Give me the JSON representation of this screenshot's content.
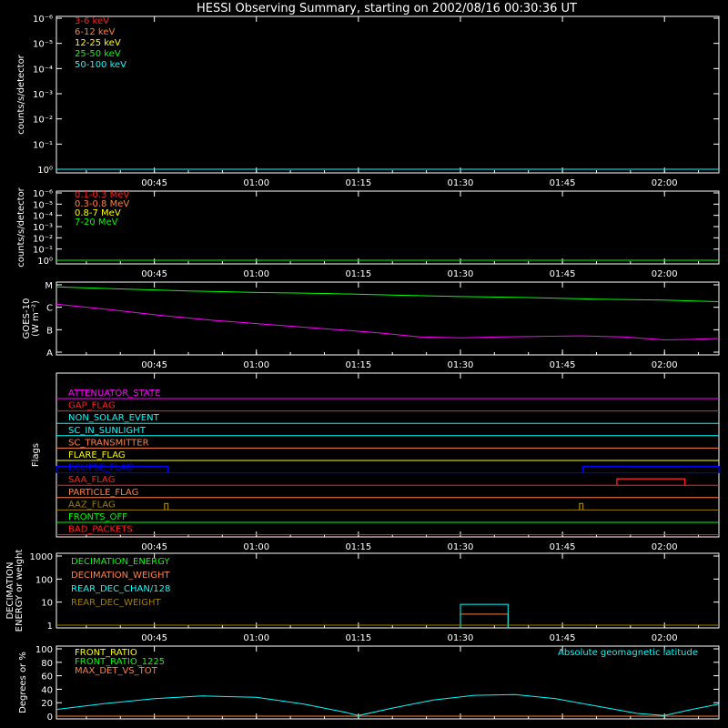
{
  "title": "HESSI Observing Summary, starting on 2002/08/16 00:30:36 UT",
  "colors": {
    "background": "#000000",
    "axis": "#ffffff",
    "red": "#ff2020",
    "orange": "#ff8040",
    "yellow": "#ffff00",
    "green": "#00ff00",
    "cyan": "#00ffff",
    "magenta": "#ff00ff",
    "blue": "#0000ff",
    "olive": "#a08000"
  },
  "x_axis": {
    "start_time": "00:30:36",
    "end_time": "02:08:00",
    "tick_labels": [
      "00:45",
      "01:00",
      "01:15",
      "01:30",
      "01:45",
      "02:00"
    ]
  },
  "chart_data": [
    {
      "type": "line",
      "panel": "lo_energy",
      "ylabel": "counts/s/detector",
      "y_tick_labels": [
        "10⁰",
        "10⁻¹",
        "10⁻²",
        "10⁻³",
        "10⁻⁴",
        "10⁻⁵",
        "10⁻⁶"
      ],
      "y_scale": "log",
      "ylim": [
        1,
        1e-06
      ],
      "series": [
        {
          "name": "3-6 keV",
          "color": "#ff2020",
          "x": [
            "00:30:36",
            "02:08:00"
          ],
          "y": [
            1,
            1
          ]
        },
        {
          "name": "6-12 keV",
          "color": "#ff8040",
          "x": [
            "00:30:36",
            "02:08:00"
          ],
          "y": [
            1,
            1
          ]
        },
        {
          "name": "12-25 keV",
          "color": "#ffff00",
          "x": [
            "00:30:36",
            "02:08:00"
          ],
          "y": [
            1,
            1
          ]
        },
        {
          "name": "25-50 keV",
          "color": "#00ff00",
          "x": [
            "00:30:36",
            "02:08:00"
          ],
          "y": [
            1,
            1
          ]
        },
        {
          "name": "50-100 keV",
          "color": "#00ffff",
          "x": [
            "00:30:36",
            "02:08:00"
          ],
          "y": [
            1,
            1
          ]
        }
      ]
    },
    {
      "type": "line",
      "panel": "hi_energy",
      "ylabel": "counts/s/detector",
      "y_tick_labels": [
        "10⁰",
        "10⁻¹",
        "10⁻²",
        "10⁻³",
        "10⁻⁴",
        "10⁻⁵",
        "10⁻⁶"
      ],
      "y_scale": "log",
      "ylim": [
        1,
        1e-06
      ],
      "series": [
        {
          "name": "0.1-0.3 MeV",
          "color": "#ff2020",
          "x": [
            "00:30:36",
            "02:08:00"
          ],
          "y": [
            1,
            1
          ]
        },
        {
          "name": "0.3-0.8 MeV",
          "color": "#ff8040",
          "x": [
            "00:30:36",
            "02:08:00"
          ],
          "y": [
            1,
            1
          ]
        },
        {
          "name": "0.8-7 MeV",
          "color": "#ffff00",
          "x": [
            "00:30:36",
            "02:08:00"
          ],
          "y": [
            1,
            1
          ]
        },
        {
          "name": "7-20 MeV",
          "color": "#00ff00",
          "x": [
            "00:30:36",
            "02:08:00"
          ],
          "y": [
            1,
            1
          ]
        }
      ]
    },
    {
      "type": "line",
      "panel": "goes",
      "ylabel": "GOES-10",
      "ylabel2": "(W m⁻²)",
      "y_tick_labels": [
        "A",
        "B",
        "C",
        "M"
      ],
      "y_scale": "log",
      "series": [
        {
          "name": "GOES high",
          "color": "#00ff00",
          "x": [
            "00:30:36",
            "00:40:00",
            "00:50:00",
            "01:00:00",
            "01:10:00",
            "01:20:00",
            "01:30:00",
            "01:40:00",
            "01:50:00",
            "02:00:00",
            "02:08:00"
          ],
          "level": [
            7.4,
            7.2,
            7.0,
            6.85,
            6.75,
            6.6,
            6.45,
            6.35,
            6.2,
            6.1,
            5.95
          ]
        },
        {
          "name": "GOES low",
          "color": "#ff00ff",
          "x": [
            "00:30:36",
            "00:38:00",
            "00:46:00",
            "00:54:00",
            "01:02:00",
            "01:10:00",
            "01:18:00",
            "01:24:00",
            "01:30:00",
            "01:36:00",
            "01:42:00",
            "01:48:00",
            "01:54:00",
            "02:00:00",
            "02:04:00",
            "02:08:00"
          ],
          "level": [
            5.7,
            5.2,
            4.6,
            4.1,
            3.7,
            3.3,
            2.9,
            2.5,
            2.4,
            2.5,
            2.55,
            2.6,
            2.5,
            2.2,
            2.25,
            2.35
          ]
        }
      ]
    },
    {
      "type": "table",
      "panel": "flags",
      "ylabel": "Flags",
      "flags": [
        {
          "name": "ATTENUATOR_STATE",
          "color": "#ff00ff",
          "segments": []
        },
        {
          "name": "GAP_FLAG",
          "color": "#ff2020",
          "segments": []
        },
        {
          "name": "NON_SOLAR_EVENT",
          "color": "#00ffff",
          "segments": []
        },
        {
          "name": "SC_IN_SUNLIGHT",
          "color": "#00ffff",
          "segments": []
        },
        {
          "name": "SC_TRANSMITTER",
          "color": "#ff8040",
          "segments": []
        },
        {
          "name": "FLARE_FLAG",
          "color": "#ffff00",
          "segments": []
        },
        {
          "name": "ECLIPSE_FLAG",
          "color": "#0000ff",
          "segments": [
            [
              "00:30:36",
              "00:47:00"
            ],
            [
              "01:48:00",
              "02:08:00"
            ]
          ]
        },
        {
          "name": "SAA_FLAG",
          "color": "#ff2020",
          "segments": [
            [
              "01:53:00",
              "02:03:00"
            ]
          ]
        },
        {
          "name": "PARTICLE_FLAG",
          "color": "#ff8040",
          "segments": []
        },
        {
          "name": "AAZ_FLAG",
          "color": "#a08000",
          "segments": [
            [
              "00:46:30",
              "00:47:00"
            ],
            [
              "01:47:30",
              "01:48:00"
            ]
          ]
        },
        {
          "name": "FRONTS_OFF",
          "color": "#00ff00",
          "segments": []
        },
        {
          "name": "BAD_PACKETS",
          "color": "#ff2020",
          "segments": []
        }
      ]
    },
    {
      "type": "line",
      "panel": "decimation",
      "ylabel": "DECIMATION",
      "ylabel2": "ENERGY or weight",
      "y_tick_labels": [
        "1",
        "10",
        "100",
        "1000"
      ],
      "y_scale": "log",
      "ylim": [
        1,
        1000
      ],
      "series": [
        {
          "name": "DECIMATION_ENERGY",
          "color": "#00ff00",
          "x": [
            "00:30:36",
            "02:08:00"
          ],
          "y": [
            1,
            1
          ]
        },
        {
          "name": "DECIMATION_WEIGHT",
          "color": "#ff8040",
          "x": [
            "01:30:00",
            "01:37:00"
          ],
          "y": [
            3,
            3
          ]
        },
        {
          "name": "REAR_DEC_CHAN/128",
          "color": "#00ffff",
          "x": [
            "01:30:00",
            "01:37:00"
          ],
          "y": [
            8,
            8
          ]
        },
        {
          "name": "REAR_DEC_WEIGHT",
          "color": "#a08000",
          "x": [
            "00:30:36",
            "02:08:00"
          ],
          "y": [
            1,
            1
          ]
        }
      ]
    },
    {
      "type": "line",
      "panel": "geomag",
      "ylabel": "Degrees or %",
      "y_tick_labels": [
        "0",
        "20",
        "40",
        "60",
        "80",
        "100"
      ],
      "ylim": [
        0,
        100
      ],
      "annotation": "Absolute geomagnetic latitude",
      "series": [
        {
          "name": "FRONT_RATIO",
          "color": "#ffff00",
          "x": [
            "00:30:36",
            "02:08:00"
          ],
          "y": [
            0,
            0
          ]
        },
        {
          "name": "FRONT_RATIO_1225",
          "color": "#00ff00",
          "x": [
            "00:30:36",
            "02:08:00"
          ],
          "y": [
            0,
            0
          ]
        },
        {
          "name": "MAX_DET_VS_TOT",
          "color": "#ff8040",
          "x": [
            "00:30:36",
            "02:08:00"
          ],
          "y": [
            0,
            0
          ]
        },
        {
          "name": "Absolute geomagnetic latitude",
          "color": "#00ffff",
          "x": [
            "00:30:36",
            "00:38:00",
            "00:45:00",
            "00:52:00",
            "01:00:00",
            "01:07:00",
            "01:13:00",
            "01:15:00",
            "01:20:00",
            "01:26:00",
            "01:32:00",
            "01:38:00",
            "01:44:00",
            "01:50:00",
            "01:56:00",
            "02:00:00",
            "02:04:00",
            "02:08:00"
          ],
          "y": [
            10,
            19,
            26,
            30,
            28,
            18,
            6,
            1,
            12,
            24,
            31,
            32,
            26,
            15,
            4,
            1,
            10,
            18
          ]
        }
      ]
    }
  ]
}
